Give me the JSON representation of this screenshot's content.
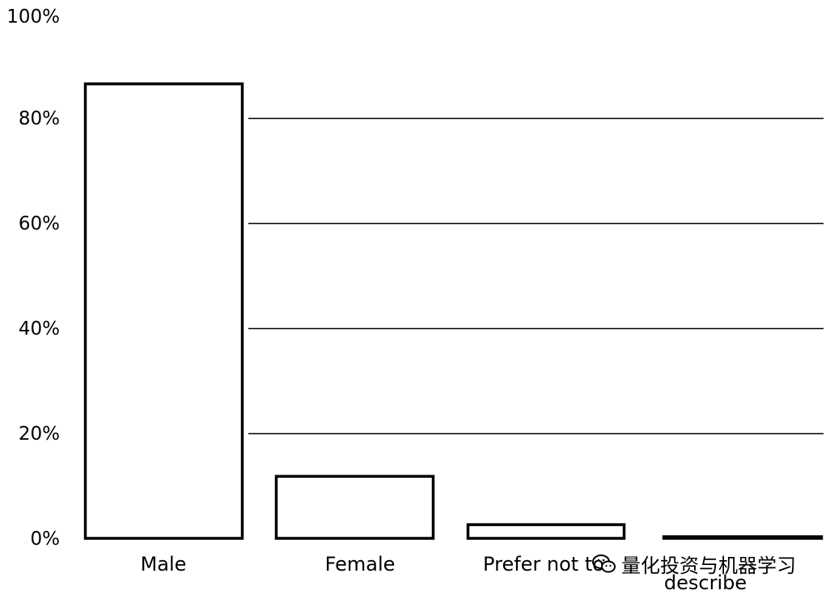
{
  "chart_data": {
    "type": "bar",
    "title": "",
    "xlabel": "",
    "ylabel": "",
    "categories": [
      "Male",
      "Female",
      "Prefer not to say",
      "Prefer to self-describe"
    ],
    "category_label_lines": [
      [
        "Male"
      ],
      [
        "Female"
      ],
      [
        "Prefer not to"
      ],
      [
        "describe"
      ]
    ],
    "values": [
      86.5,
      11.8,
      2.6,
      0.3
    ],
    "unit": "%",
    "ylim": [
      0,
      100
    ],
    "yticks": [
      "0%",
      "20%",
      "40%",
      "60%",
      "80%",
      "100%"
    ],
    "ytick_values": [
      0,
      20,
      40,
      60,
      80,
      100
    ],
    "grid": true,
    "bar_fill": "#ffffff",
    "bar_stroke": "#000000"
  },
  "watermark": {
    "text": "量化投资与机器学习",
    "icon": "wechat-icon"
  }
}
